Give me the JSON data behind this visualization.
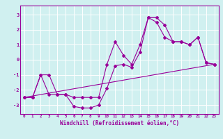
{
  "title": "",
  "xlabel": "Windchill (Refroidissement éolien,°C)",
  "bg_color": "#d0f0f0",
  "line_color": "#990099",
  "grid_color": "#ffffff",
  "x_ticks": [
    0,
    1,
    2,
    3,
    4,
    5,
    6,
    7,
    8,
    9,
    10,
    11,
    12,
    13,
    14,
    15,
    16,
    17,
    18,
    19,
    20,
    21,
    22,
    23
  ],
  "y_ticks": [
    -3,
    -2,
    -1,
    0,
    1,
    2,
    3
  ],
  "ylim": [
    -3.6,
    3.6
  ],
  "xlim": [
    -0.5,
    23.5
  ],
  "series": [
    {
      "x": [
        0,
        1,
        2,
        3,
        4,
        5,
        6,
        7,
        8,
        9,
        10,
        11,
        12,
        13,
        14,
        15,
        16,
        17,
        18,
        19,
        20,
        21,
        22,
        23
      ],
      "y": [
        -2.5,
        -2.5,
        -1.0,
        -1.0,
        -2.3,
        -2.3,
        -3.1,
        -3.2,
        -3.2,
        -3.0,
        -1.9,
        -0.4,
        -0.3,
        -0.5,
        0.5,
        2.8,
        2.8,
        2.3,
        1.2,
        1.2,
        1.0,
        1.5,
        -0.2,
        -0.3
      ]
    },
    {
      "x": [
        0,
        1,
        2,
        3,
        4,
        5,
        6,
        7,
        8,
        9,
        10,
        11,
        12,
        13,
        14,
        15,
        16,
        17,
        18,
        19,
        20,
        21,
        22,
        23
      ],
      "y": [
        -2.5,
        -2.5,
        -1.0,
        -2.3,
        -2.3,
        -2.3,
        -2.5,
        -2.5,
        -2.5,
        -2.5,
        -0.3,
        1.2,
        0.3,
        -0.3,
        1.0,
        2.8,
        2.5,
        1.5,
        1.2,
        1.2,
        1.0,
        1.5,
        -0.2,
        -0.3
      ]
    },
    {
      "x": [
        0,
        23
      ],
      "y": [
        -2.5,
        -0.3
      ]
    }
  ]
}
